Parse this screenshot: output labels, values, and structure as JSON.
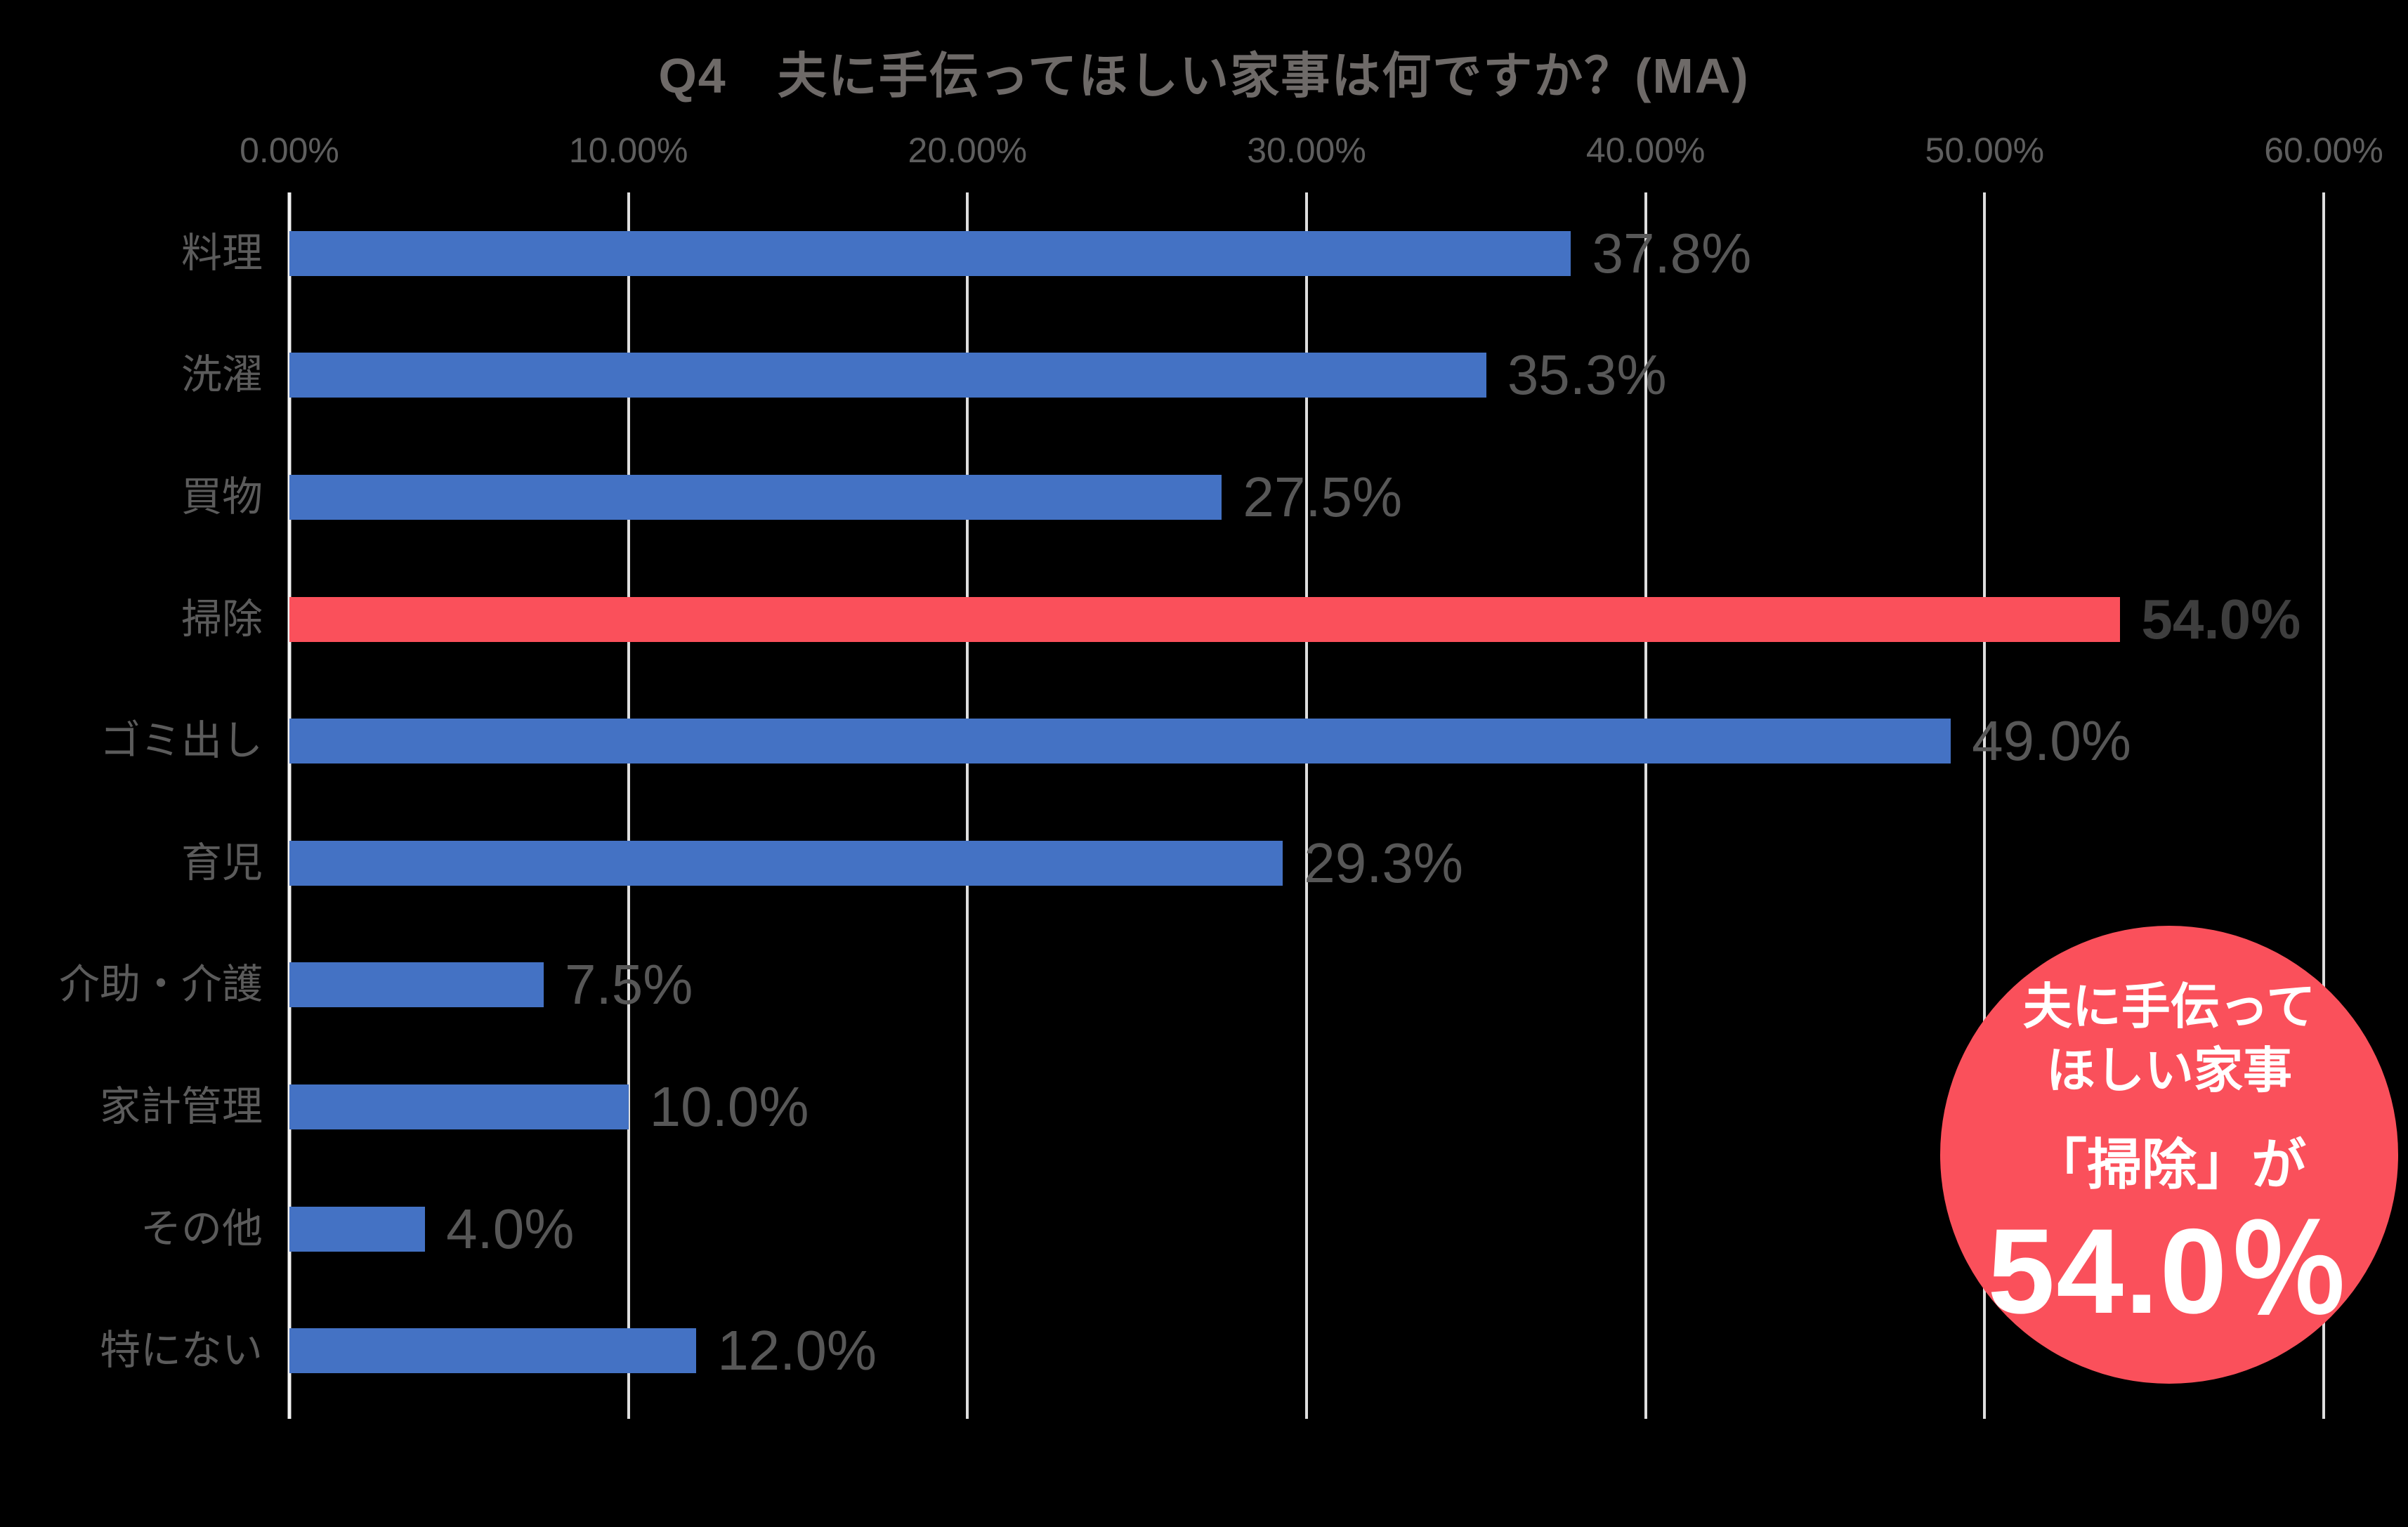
{
  "title": "Q4　夫に手伝ってほしい家事は何ですか？(MA)",
  "chart_data": {
    "type": "bar",
    "orientation": "horizontal",
    "title": "Q4　夫に手伝ってほしい家事は何ですか？(MA)",
    "categories": [
      "料理",
      "洗濯",
      "買物",
      "掃除",
      "ゴミ出し",
      "育児",
      "介助・介護",
      "家計管理",
      "その他",
      "特にない"
    ],
    "values": [
      37.8,
      35.3,
      27.5,
      54.0,
      49.0,
      29.3,
      7.5,
      10.0,
      4.0,
      12.0
    ],
    "value_labels": [
      "37.8%",
      "35.3%",
      "27.5%",
      "54.0%",
      "49.0%",
      "29.3%",
      "7.5%",
      "10.0%",
      "4.0%",
      "12.0%"
    ],
    "highlight_index": 3,
    "x_ticks": [
      "0.00%",
      "10.00%",
      "20.00%",
      "30.00%",
      "40.00%",
      "50.00%",
      "60.00%"
    ],
    "xlim": [
      0,
      60
    ],
    "xlabel": "",
    "ylabel": "",
    "grid": true,
    "legend": "none",
    "bar_color": "#4472C4",
    "highlight_color": "#FA505B",
    "background_color": "#000000"
  },
  "badge": {
    "line1": "夫に手伝って",
    "line2": "ほしい家事",
    "line3": "「掃除」が",
    "value": "54.0％",
    "bg_color": "#FA505B",
    "text_color": "#FFFFFF"
  },
  "colors": {
    "background": "#000000",
    "gridline": "#DEDEDE",
    "axis_line": "#F2F2F2",
    "title_text": "#6E6A68",
    "tick_text": "#5E5E5E",
    "category_text": "#5B5B5B",
    "value_text": "#575757",
    "highlight_value_text": "#3E3E3E"
  }
}
